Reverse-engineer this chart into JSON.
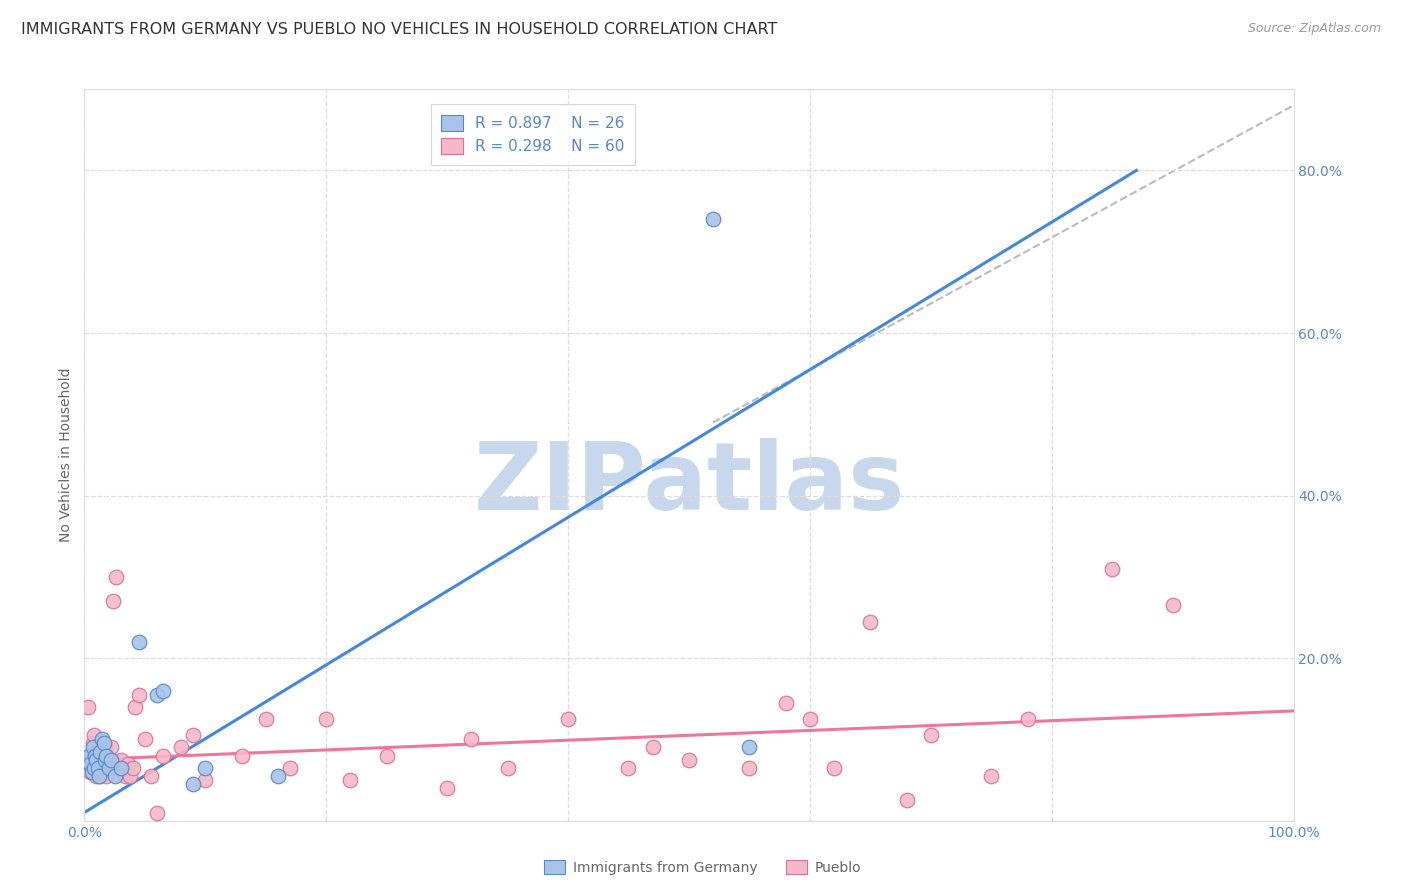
{
  "title": "IMMIGRANTS FROM GERMANY VS PUEBLO NO VEHICLES IN HOUSEHOLD CORRELATION CHART",
  "source": "Source: ZipAtlas.com",
  "ylabel": "No Vehicles in Household",
  "legend_blue_R": "R = 0.897",
  "legend_blue_N": "N = 26",
  "legend_pink_R": "R = 0.298",
  "legend_pink_N": "N = 60",
  "legend_label_blue": "Immigrants from Germany",
  "legend_label_pink": "Pueblo",
  "xlim": [
    0.0,
    1.0
  ],
  "ylim": [
    0.0,
    0.9
  ],
  "xticks": [
    0.0,
    0.2,
    0.4,
    0.6,
    0.8,
    1.0
  ],
  "yticks": [
    0.0,
    0.2,
    0.4,
    0.6,
    0.8
  ],
  "xticklabels": [
    "0.0%",
    "",
    "",
    "",
    "",
    "100.0%"
  ],
  "yticklabels": [
    "",
    "20.0%",
    "40.0%",
    "60.0%",
    "80.0%"
  ],
  "blue_scatter_color": "#A8C4E8",
  "blue_edge_color": "#5588CC",
  "pink_scatter_color": "#F4B8C8",
  "pink_edge_color": "#E07090",
  "trendline_blue_color": "#4488DD",
  "trendline_pink_color": "#EE7799",
  "dashed_line_color": "#BBBBBB",
  "background_color": "#FFFFFF",
  "grid_color": "#DDDDDD",
  "watermark_text": "ZIPatlas",
  "watermark_color": "#C8D8EC",
  "tick_color": "#5588CC",
  "blue_points": [
    [
      0.004,
      0.08
    ],
    [
      0.005,
      0.07
    ],
    [
      0.006,
      0.06
    ],
    [
      0.007,
      0.09
    ],
    [
      0.008,
      0.065
    ],
    [
      0.009,
      0.08
    ],
    [
      0.01,
      0.075
    ],
    [
      0.011,
      0.065
    ],
    [
      0.012,
      0.055
    ],
    [
      0.013,
      0.085
    ],
    [
      0.015,
      0.1
    ],
    [
      0.016,
      0.095
    ],
    [
      0.017,
      0.075
    ],
    [
      0.018,
      0.08
    ],
    [
      0.02,
      0.065
    ],
    [
      0.022,
      0.075
    ],
    [
      0.025,
      0.055
    ],
    [
      0.03,
      0.065
    ],
    [
      0.045,
      0.22
    ],
    [
      0.06,
      0.155
    ],
    [
      0.065,
      0.16
    ],
    [
      0.09,
      0.045
    ],
    [
      0.1,
      0.065
    ],
    [
      0.16,
      0.055
    ],
    [
      0.52,
      0.74
    ],
    [
      0.55,
      0.09
    ]
  ],
  "pink_points": [
    [
      0.003,
      0.14
    ],
    [
      0.004,
      0.075
    ],
    [
      0.005,
      0.06
    ],
    [
      0.006,
      0.08
    ],
    [
      0.007,
      0.095
    ],
    [
      0.008,
      0.105
    ],
    [
      0.009,
      0.07
    ],
    [
      0.01,
      0.055
    ],
    [
      0.011,
      0.065
    ],
    [
      0.012,
      0.075
    ],
    [
      0.013,
      0.055
    ],
    [
      0.014,
      0.06
    ],
    [
      0.015,
      0.08
    ],
    [
      0.016,
      0.065
    ],
    [
      0.017,
      0.09
    ],
    [
      0.018,
      0.055
    ],
    [
      0.02,
      0.07
    ],
    [
      0.022,
      0.09
    ],
    [
      0.024,
      0.27
    ],
    [
      0.026,
      0.3
    ],
    [
      0.028,
      0.065
    ],
    [
      0.03,
      0.075
    ],
    [
      0.032,
      0.06
    ],
    [
      0.034,
      0.055
    ],
    [
      0.036,
      0.07
    ],
    [
      0.038,
      0.055
    ],
    [
      0.04,
      0.065
    ],
    [
      0.042,
      0.14
    ],
    [
      0.045,
      0.155
    ],
    [
      0.05,
      0.1
    ],
    [
      0.055,
      0.055
    ],
    [
      0.06,
      0.01
    ],
    [
      0.065,
      0.08
    ],
    [
      0.08,
      0.09
    ],
    [
      0.09,
      0.105
    ],
    [
      0.1,
      0.05
    ],
    [
      0.13,
      0.08
    ],
    [
      0.15,
      0.125
    ],
    [
      0.17,
      0.065
    ],
    [
      0.2,
      0.125
    ],
    [
      0.22,
      0.05
    ],
    [
      0.25,
      0.08
    ],
    [
      0.3,
      0.04
    ],
    [
      0.32,
      0.1
    ],
    [
      0.35,
      0.065
    ],
    [
      0.4,
      0.125
    ],
    [
      0.45,
      0.065
    ],
    [
      0.47,
      0.09
    ],
    [
      0.5,
      0.075
    ],
    [
      0.55,
      0.065
    ],
    [
      0.58,
      0.145
    ],
    [
      0.6,
      0.125
    ],
    [
      0.62,
      0.065
    ],
    [
      0.65,
      0.245
    ],
    [
      0.68,
      0.025
    ],
    [
      0.7,
      0.105
    ],
    [
      0.75,
      0.055
    ],
    [
      0.78,
      0.125
    ],
    [
      0.85,
      0.31
    ],
    [
      0.9,
      0.265
    ]
  ],
  "blue_trendline": [
    [
      0.0,
      0.01
    ],
    [
      0.87,
      0.8
    ]
  ],
  "pink_trendline": [
    [
      0.0,
      0.075
    ],
    [
      1.0,
      0.135
    ]
  ],
  "dashed_trendline": [
    [
      0.52,
      0.49
    ],
    [
      1.0,
      0.88
    ]
  ],
  "title_fontsize": 11.5,
  "axis_tick_fontsize": 10,
  "ylabel_fontsize": 10,
  "legend_fontsize": 11
}
